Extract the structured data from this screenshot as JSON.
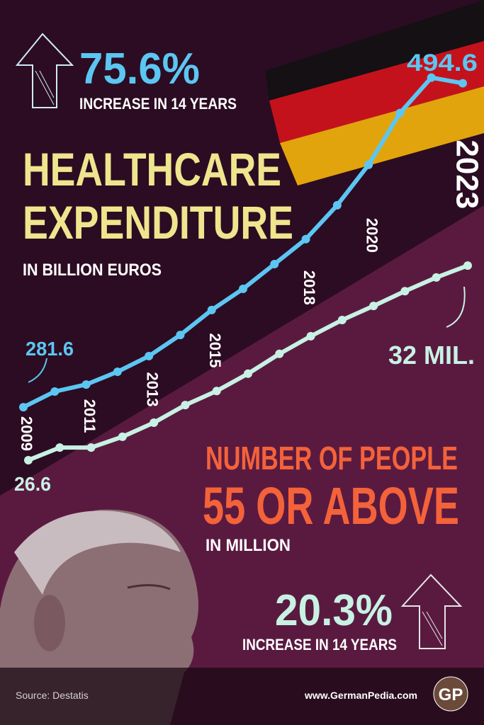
{
  "chart_data": {
    "type": "line",
    "title": [
      "HEALTHCARE",
      "EXPENDITURE"
    ],
    "subtitle": "IN BILLION EUROS",
    "categories": [
      "2009",
      null,
      "2011",
      null,
      "2013",
      null,
      "2015",
      null,
      null,
      "2018",
      null,
      "2020",
      null,
      null,
      "2023"
    ],
    "series": [
      {
        "color": "#5cc6f2",
        "values": [
          281.6,
          291.9,
          296.5,
          304.9,
          315.2,
          329.1,
          345.5,
          359.4,
          375.7,
          392.1,
          414.4,
          441.0,
          475.0,
          498.3,
          494.6
        ]
      },
      {
        "color": "#c8f1e4",
        "axis": "y2",
        "values": [
          26.6,
          26.95,
          26.95,
          27.25,
          27.64,
          28.13,
          28.52,
          29.0,
          29.55,
          30.04,
          30.49,
          30.88,
          31.29,
          31.67,
          32
        ],
        "value_labels": [
          "26.6",
          null,
          null,
          null,
          null,
          null,
          null,
          null,
          null,
          null,
          null,
          null,
          null,
          null,
          "32 MIL."
        ]
      }
    ],
    "ylim": [
      250,
      520
    ],
    "y2lim": [
      26,
      36
    ],
    "annotations": {
      "expenditure_increase": "75.6%",
      "expenditure_increase_note": "INCREASE IN 14 YEARS",
      "people_title": [
        "NUMBER OF PEOPLE",
        "55 OR ABOVE"
      ],
      "people_unit": "IN MILLION",
      "people_increase": "20.3%",
      "people_increase_note": "INCREASE IN 14 YEARS"
    }
  },
  "footer": {
    "source": "Source: Destatis",
    "website": "www.GermanPedia.com",
    "logo": "GP"
  }
}
